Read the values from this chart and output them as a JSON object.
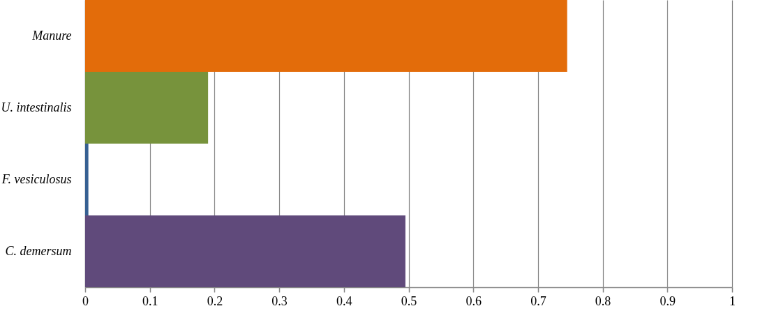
{
  "chart_data": {
    "type": "bar",
    "orientation": "horizontal",
    "categories": [
      "Manure",
      "U. intestinalis",
      "F. vesiculosus",
      "C. demersum"
    ],
    "values": [
      0.745,
      0.19,
      0.005,
      0.495
    ],
    "colors": [
      "#e36c0a",
      "#77933c",
      "#366092",
      "#604a7b"
    ],
    "xlim": [
      0,
      1
    ],
    "xticks": [
      0,
      0.1,
      0.2,
      0.3,
      0.4,
      0.5,
      0.6,
      0.7,
      0.8,
      0.9,
      1
    ],
    "grid": "x"
  }
}
